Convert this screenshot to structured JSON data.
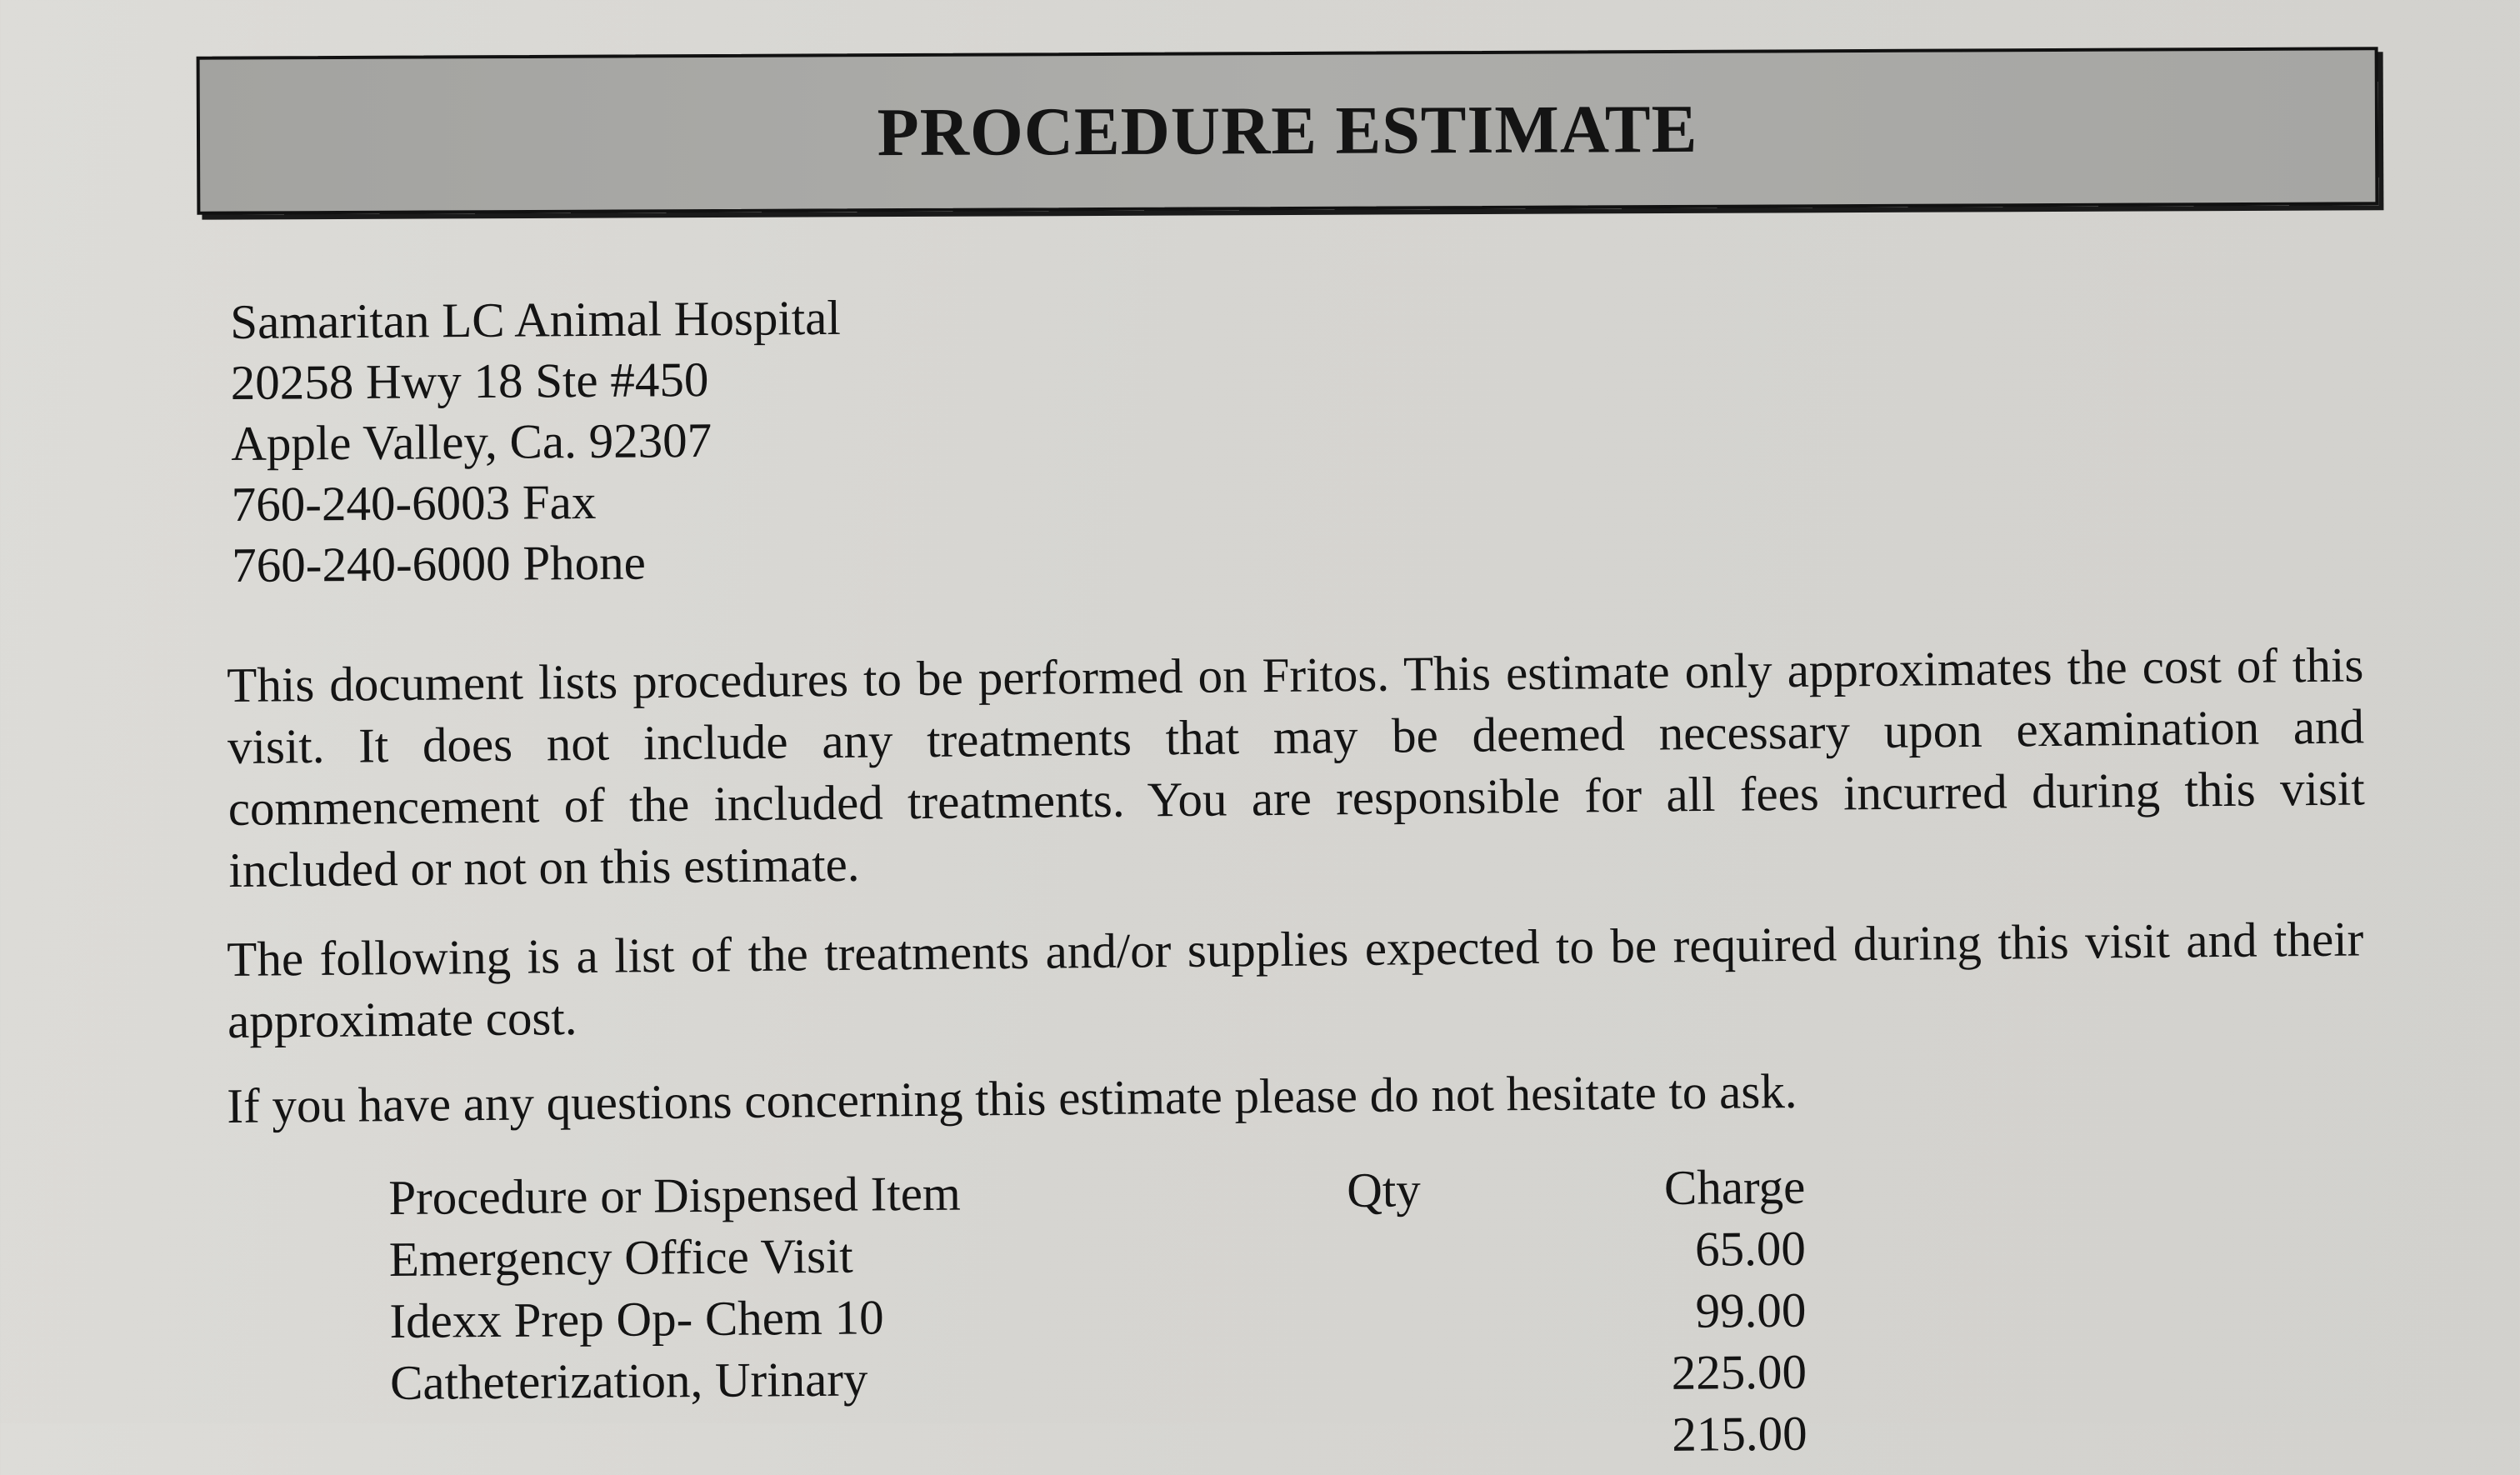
{
  "title": "PROCEDURE ESTIMATE",
  "address": [
    "Samaritan LC Animal Hospital",
    "20258 Hwy 18 Ste #450",
    "Apple Valley, Ca. 92307",
    "760-240-6003 Fax",
    "760-240-6000 Phone"
  ],
  "paragraphs": [
    "This document lists procedures to be performed on Fritos.  This estimate only approximates the cost of this visit.  It does not include any treatments that may be deemed necessary upon examination and commencement of the included treatments.  You are responsible for all fees incurred during this visit included or not on this estimate.",
    "The following is a list of the treatments and/or supplies expected to be required during this visit and their approximate cost.",
    "If you have any questions concerning this estimate please do not hesitate to ask."
  ],
  "table": {
    "headers": {
      "item": "Procedure or Dispensed Item",
      "qty": "Qty",
      "charge": "Charge"
    },
    "rows": [
      {
        "item": "Emergency Office Visit",
        "qty": "",
        "charge": "65.00"
      },
      {
        "item": "Idexx Prep Op- Chem 10",
        "qty": "",
        "charge": "99.00"
      },
      {
        "item": "Catheterization, Urinary",
        "qty": "",
        "charge": "225.00"
      },
      {
        "item": "",
        "qty": "",
        "charge": "215.00"
      }
    ]
  }
}
